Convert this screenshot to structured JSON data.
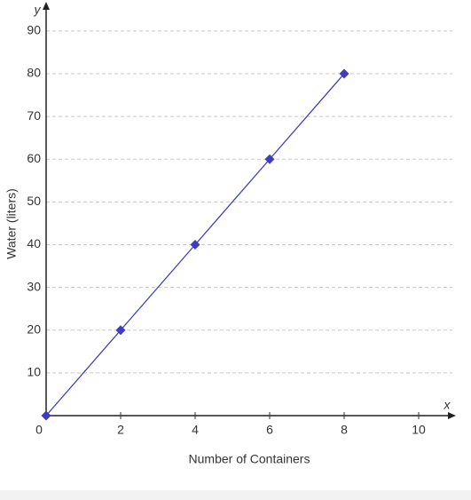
{
  "chart_data": {
    "type": "line",
    "x_label": "Number of Containers",
    "y_label": "Water (liters)",
    "x_axis_symbol": "x",
    "y_axis_symbol": "y",
    "x": [
      0,
      2,
      4,
      6,
      8
    ],
    "series": [
      {
        "color": "#3d3dbf",
        "values": [
          0,
          20,
          40,
          60,
          80
        ]
      }
    ],
    "xlim": [
      0,
      11
    ],
    "ylim": [
      0,
      96
    ],
    "xticks": [
      0,
      2,
      4,
      6,
      8,
      10
    ],
    "yticks": [
      10,
      20,
      30,
      40,
      50,
      60,
      70,
      80,
      90
    ],
    "grid": true
  }
}
